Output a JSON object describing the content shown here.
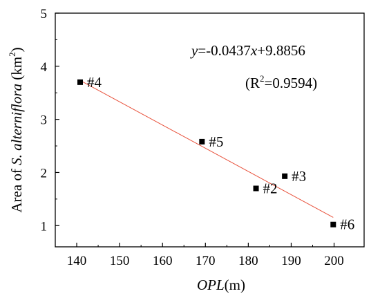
{
  "chart_data": {
    "type": "scatter",
    "xlabel_italic": "OPL",
    "xlabel_unit": "(m)",
    "ylabel_prefix": "Area of ",
    "ylabel_italic": "S. alterniflora",
    "ylabel_unit_pre": " (km",
    "ylabel_unit_sup": "2",
    "ylabel_unit_post": ")",
    "xlim": [
      135,
      207
    ],
    "ylim": [
      0.6,
      5
    ],
    "xticks": [
      140,
      150,
      160,
      170,
      180,
      190,
      200
    ],
    "yticks": [
      1,
      2,
      3,
      4,
      5
    ],
    "points": [
      {
        "label": "#4",
        "x": 140.8,
        "y": 3.7
      },
      {
        "label": "#5",
        "x": 169.2,
        "y": 2.58
      },
      {
        "label": "#3",
        "x": 188.5,
        "y": 1.93
      },
      {
        "label": "#2",
        "x": 181.8,
        "y": 1.7
      },
      {
        "label": "#6",
        "x": 199.8,
        "y": 1.02
      }
    ],
    "fit": {
      "slope": -0.0437,
      "intercept": 9.8856,
      "x_range": [
        140.8,
        199.8
      ],
      "color": "#e8503a"
    },
    "equation": {
      "y_var": "y",
      "middle": "=-0.0437",
      "x_var": "x",
      "tail": "+9.8856"
    },
    "r2": {
      "open": "(R",
      "sup": "2",
      "close": "=0.9594)"
    },
    "marker_color": "#000000",
    "grid": false
  }
}
